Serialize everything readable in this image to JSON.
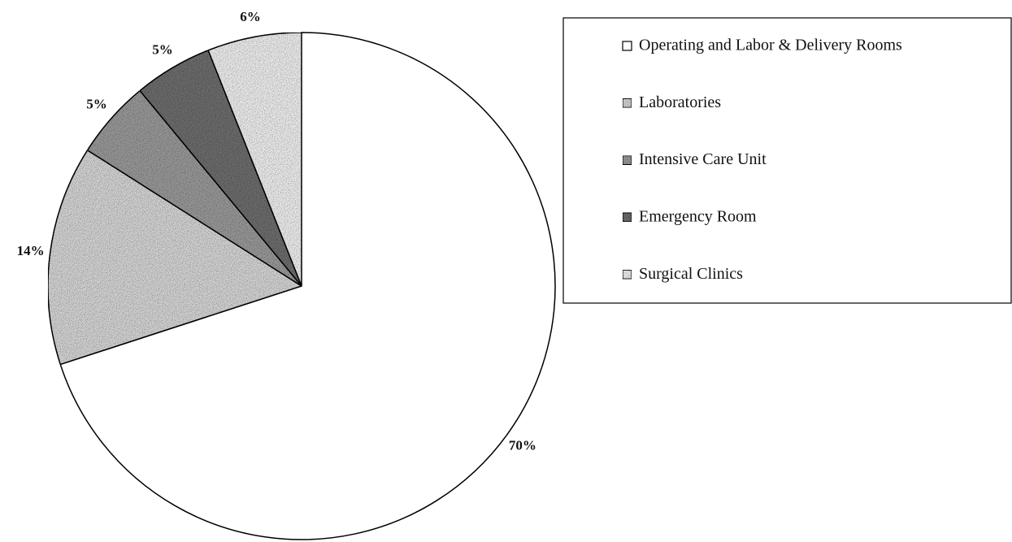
{
  "chart_data": {
    "type": "pie",
    "categories": [
      "Operating and Labor & Delivery Rooms",
      "Laboratories",
      "Intensive Care Unit",
      "Emergency Room",
      "Surgical Clinics"
    ],
    "values": [
      70,
      14,
      5,
      5,
      6
    ],
    "value_labels": [
      "70%",
      "14%",
      "5%",
      "5%",
      "6%"
    ],
    "colors": [
      "#ffffff",
      "#d6d6d6",
      "#9a9a9a",
      "#6e6e6e",
      "#efefef"
    ]
  }
}
